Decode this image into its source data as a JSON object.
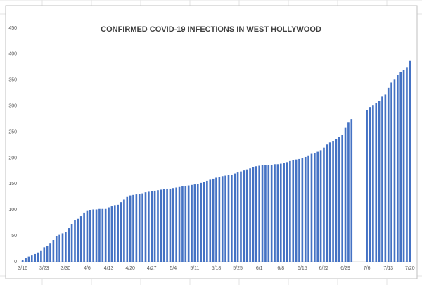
{
  "chart_data": {
    "type": "bar",
    "title": "CONFIRMED COVID-19 INFECTIONS IN WEST HOLLYWOOD",
    "categories": [
      "3/16",
      null,
      null,
      null,
      null,
      null,
      null,
      "3/23",
      null,
      null,
      null,
      null,
      null,
      null,
      "3/30",
      null,
      null,
      null,
      null,
      null,
      null,
      "4/6",
      null,
      null,
      null,
      null,
      null,
      null,
      "4/13",
      null,
      null,
      null,
      null,
      null,
      null,
      "4/20",
      null,
      null,
      null,
      null,
      null,
      null,
      "4/27",
      null,
      null,
      null,
      null,
      null,
      null,
      "5/4",
      null,
      null,
      null,
      null,
      null,
      null,
      "5/11",
      null,
      null,
      null,
      null,
      null,
      null,
      "5/18",
      null,
      null,
      null,
      null,
      null,
      null,
      "5/25",
      null,
      null,
      null,
      null,
      null,
      null,
      "6/1",
      null,
      null,
      null,
      null,
      null,
      null,
      "6/8",
      null,
      null,
      null,
      null,
      null,
      null,
      "6/15",
      null,
      null,
      null,
      null,
      null,
      null,
      "6/22",
      null,
      null,
      null,
      null,
      null,
      null,
      "6/29",
      null,
      null,
      null,
      null,
      null,
      null,
      "7/6",
      null,
      null,
      null,
      null,
      null,
      null,
      "7/13",
      null,
      null,
      null,
      null,
      null,
      null,
      "7/20"
    ],
    "values": [
      3,
      7,
      10,
      12,
      15,
      18,
      22,
      28,
      30,
      35,
      42,
      50,
      52,
      55,
      58,
      65,
      72,
      80,
      83,
      88,
      95,
      98,
      100,
      101,
      101,
      102,
      102,
      102,
      105,
      107,
      108,
      110,
      115,
      120,
      125,
      128,
      129,
      130,
      131,
      132,
      134,
      135,
      136,
      137,
      138,
      139,
      140,
      141,
      141,
      142,
      143,
      144,
      145,
      146,
      147,
      148,
      149,
      150,
      152,
      154,
      156,
      158,
      160,
      162,
      164,
      165,
      166,
      167,
      168,
      170,
      172,
      174,
      176,
      178,
      180,
      182,
      184,
      185,
      186,
      187,
      187,
      187,
      188,
      188,
      189,
      190,
      192,
      194,
      196,
      197,
      198,
      200,
      202,
      205,
      208,
      210,
      212,
      215,
      220,
      226,
      230,
      233,
      236,
      240,
      244,
      258,
      268,
      275,
      null,
      null,
      null,
      null,
      292,
      298,
      302,
      305,
      310,
      318,
      322,
      335,
      345,
      352,
      360,
      365,
      370,
      375,
      388
    ],
    "color": "#4472c4",
    "ylim": [
      0,
      450
    ],
    "yticks": [
      0,
      50,
      100,
      150,
      200,
      250,
      300,
      350,
      400,
      450
    ],
    "grid": false
  }
}
